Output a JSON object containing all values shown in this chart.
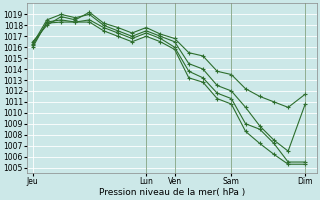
{
  "xlabel": "Pression niveau de la mer( hPa )",
  "ylim": [
    1004.5,
    1020.0
  ],
  "yticks": [
    1005,
    1006,
    1007,
    1008,
    1009,
    1010,
    1011,
    1012,
    1013,
    1014,
    1015,
    1016,
    1017,
    1018,
    1019
  ],
  "bg_color": "#cce8e8",
  "line_color": "#2d6e2d",
  "grid_color": "#ffffff",
  "day_labels": [
    "Jeu",
    "Lun",
    "Ven",
    "Sam",
    "Dim"
  ],
  "day_positions": [
    0,
    40,
    50,
    70,
    96
  ],
  "vline_positions": [
    40,
    50,
    70,
    96
  ],
  "xlim": [
    -2,
    100
  ],
  "series": [
    {
      "x": [
        0,
        5,
        10,
        15,
        20,
        25,
        30,
        35,
        40,
        45,
        50,
        55,
        60,
        65,
        70,
        75,
        80,
        85,
        90,
        96
      ],
      "y": [
        1016.5,
        1018.0,
        1018.8,
        1018.5,
        1019.2,
        1018.2,
        1017.8,
        1017.3,
        1017.8,
        1017.2,
        1016.8,
        1015.5,
        1015.2,
        1013.8,
        1013.5,
        1012.2,
        1011.5,
        1011.0,
        1010.5,
        1011.7
      ]
    },
    {
      "x": [
        0,
        5,
        10,
        15,
        20,
        25,
        30,
        35,
        40,
        45,
        50,
        55,
        60,
        65,
        70,
        75,
        80,
        85,
        90,
        96
      ],
      "y": [
        1016.3,
        1018.5,
        1019.0,
        1018.7,
        1019.0,
        1018.0,
        1017.5,
        1017.0,
        1017.5,
        1017.0,
        1016.5,
        1014.5,
        1014.0,
        1012.5,
        1012.0,
        1010.5,
        1008.8,
        1007.5,
        1006.5,
        1010.8
      ]
    },
    {
      "x": [
        0,
        5,
        10,
        15,
        20,
        25,
        30,
        35,
        40,
        45,
        50,
        55,
        60,
        65,
        70,
        75,
        80,
        85,
        90,
        96
      ],
      "y": [
        1016.0,
        1018.3,
        1018.5,
        1018.3,
        1018.5,
        1017.8,
        1017.3,
        1016.8,
        1017.3,
        1016.8,
        1016.0,
        1013.8,
        1013.2,
        1011.8,
        1011.3,
        1009.0,
        1008.5,
        1007.2,
        1005.5,
        1005.5
      ]
    },
    {
      "x": [
        0,
        5,
        10,
        15,
        20,
        25,
        30,
        35,
        40,
        45,
        50,
        55,
        60,
        65,
        70,
        75,
        80,
        85,
        90,
        96
      ],
      "y": [
        1016.2,
        1018.2,
        1018.3,
        1018.3,
        1018.3,
        1017.5,
        1017.0,
        1016.5,
        1017.0,
        1016.5,
        1015.8,
        1013.2,
        1012.8,
        1011.3,
        1010.8,
        1008.3,
        1007.2,
        1006.2,
        1005.3,
        1005.3
      ]
    }
  ],
  "marker": "+",
  "markersize": 3,
  "linewidth": 0.8,
  "tick_fontsize": 5.5,
  "label_fontsize": 6.5
}
